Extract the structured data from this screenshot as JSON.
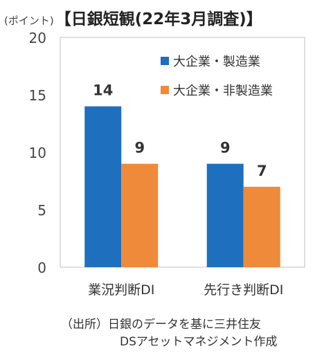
{
  "chart_data": {
    "type": "bar",
    "title": "【日銀短観(22年3月調査)】",
    "unit_label": "(ポイント)",
    "categories": [
      "業況判断DI",
      "先行き判断DI"
    ],
    "series": [
      {
        "name": "大企業・製造業",
        "values": [
          14,
          9
        ],
        "color": "#1f6fbf"
      },
      {
        "name": "大企業・非製造業",
        "values": [
          9,
          7
        ],
        "color": "#ef8a3b"
      }
    ],
    "ylim": [
      0,
      20
    ],
    "yticks": [
      0,
      5,
      10,
      15,
      20
    ],
    "grid": false,
    "legend_position": "top-right"
  },
  "source": {
    "line1": "（出所）日銀のデータを基に三井住友",
    "line2": "DSアセットマネジメント作成"
  }
}
